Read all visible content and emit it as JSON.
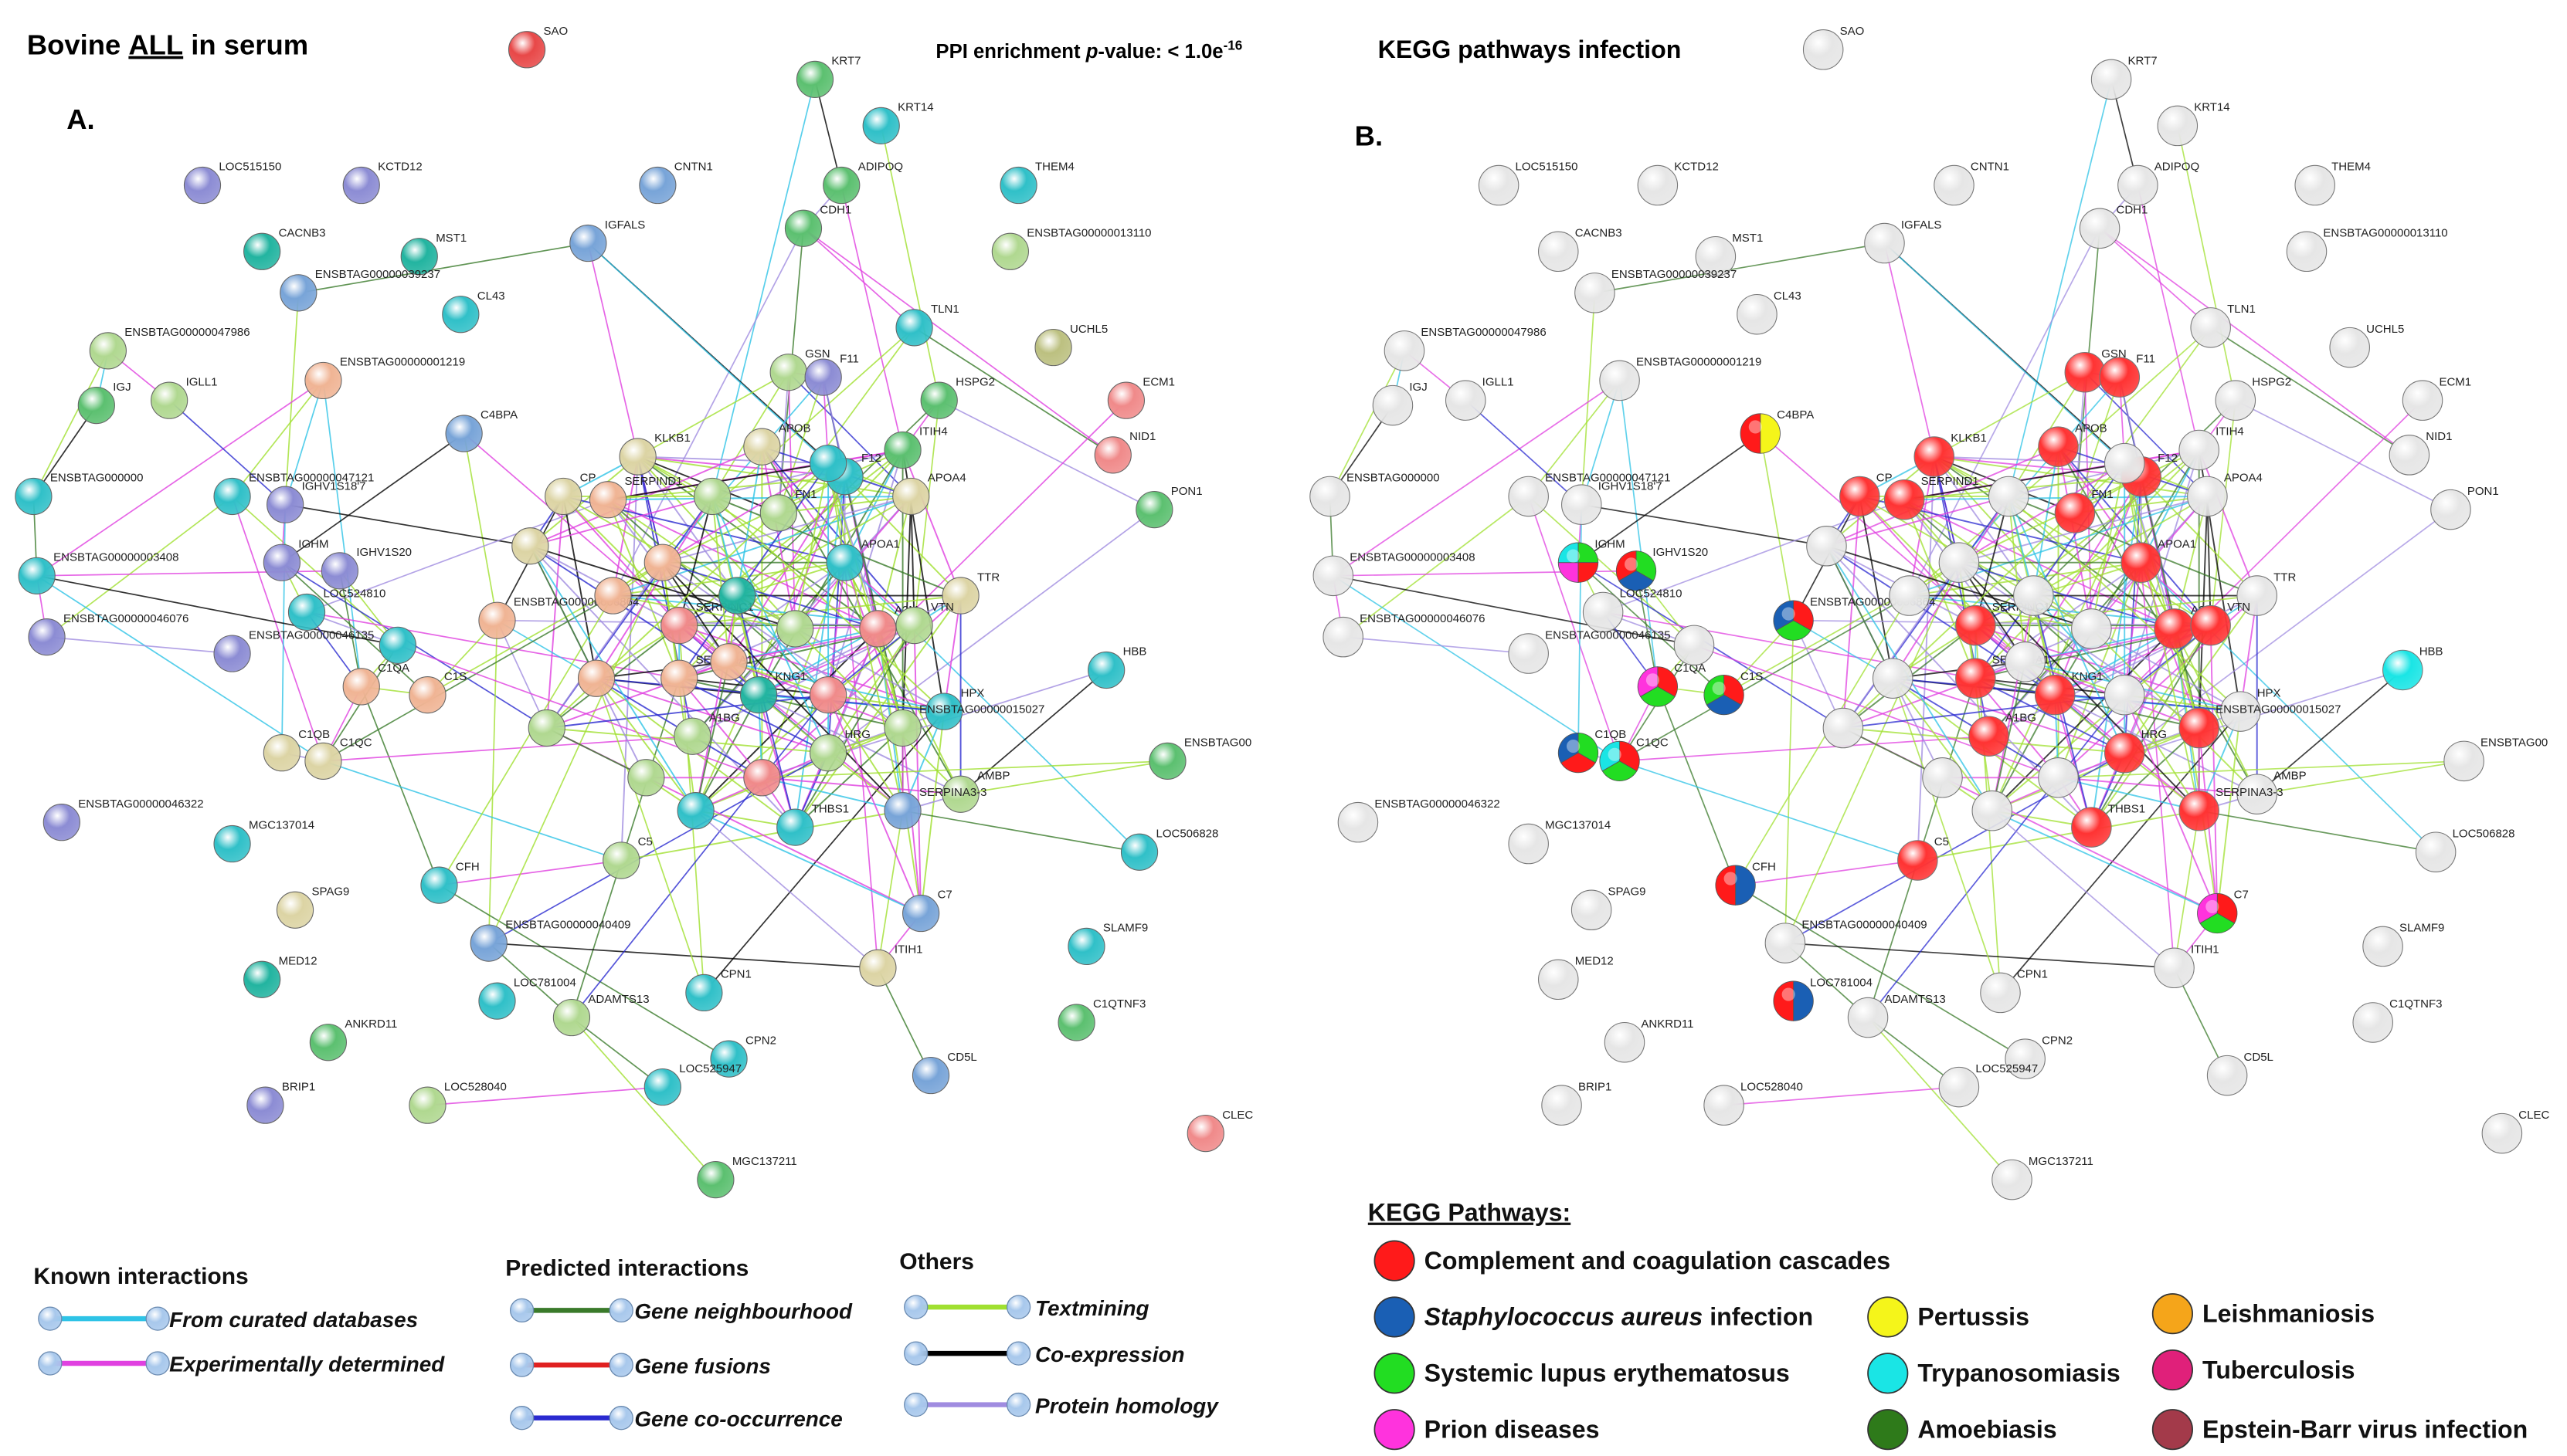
{
  "header": {
    "title_pre": "Bovine ",
    "title_underlined": "ALL",
    "title_post": " in serum",
    "ppi_pre": "PPI enrichment ",
    "ppi_italic": "p",
    "ppi_mid": "-value:  < 1.0e",
    "ppi_sup": "-16",
    "panel_b_title": "KEGG pathways infection"
  },
  "panel_a": {
    "label": "A."
  },
  "panel_b": {
    "label": "B."
  },
  "nodes": [
    "SAO",
    "KRT7",
    "KRT14",
    "ADIPOQ",
    "CDH1",
    "LOC515150",
    "KCTD12",
    "CNTN1",
    "THEM4",
    "IGFALS",
    "CACNB3",
    "MST1",
    "ENSBTAG00000013110",
    "ENSBTAG00000039237",
    "CL43",
    "TLN1",
    "UCHL5",
    "ENSBTAG00000047986",
    "ENSBTAG00000001219",
    "GSN",
    "F11",
    "HSPG2",
    "ECM1",
    "IGJ",
    "IGLL1",
    "C4BPA",
    "KLKB1",
    "NID1",
    "ITIH4",
    "APOB",
    "ENSBTAG00000047121",
    "ENSBTAG000000",
    "IGHV1S18'7",
    "SERPIND1",
    "CP",
    "F12",
    "PON1",
    "APOA4",
    "FN1",
    "IGHM",
    "IGHV1S20",
    "ENSBTAG00000003408",
    "APOA1",
    "TTR",
    "LOC524810",
    "SERPINC1",
    "A2M",
    "VTN",
    "ENSBTAG00000046076",
    "ENSBTAG00000046135",
    "ENSBTAG00000006864",
    "HBB",
    "C1QA",
    "C1S",
    "KNG1",
    "SERPINA1",
    "HPX",
    "ENSBTAG00000015027",
    "C1QB",
    "C1QC",
    "A1BG",
    "HRG",
    "ENSBTAG00",
    "AMBP",
    "SERPINA3-3",
    "THBS1",
    "ENSBTAG00000046322",
    "MGC137014",
    "LOC506828",
    "SPAG9",
    "CFH",
    "C5",
    "C7",
    "SLAMF9",
    "MED12",
    "ENSBTAG00000040409",
    "LOC781004",
    "ADAMTS13",
    "CPN1",
    "ITIH1",
    "C1QTNF3",
    "ANKRD11",
    "CPN2",
    "CD5L",
    "LOC528040",
    "LOC525947",
    "BRIP1",
    "CLEC",
    "MGC137211"
  ],
  "legend": {
    "known": {
      "title": "Known interactions",
      "items": [
        {
          "name": "From curated databases",
          "color": "#2ec3e6"
        },
        {
          "name": "Experimentally  determined",
          "color": "#e040e0"
        }
      ]
    },
    "predicted": {
      "title": "Predicted interactions",
      "items": [
        {
          "name": "Gene neighbourhood",
          "color": "#3a7a2a"
        },
        {
          "name": "Gene fusions",
          "color": "#e02020"
        },
        {
          "name": "Gene co-occurrence",
          "color": "#2a2ad0"
        }
      ]
    },
    "others": {
      "title": "Others",
      "items": [
        {
          "name": "Textmining",
          "color": "#a0e030"
        },
        {
          "name": "Co-expression",
          "color": "#000000"
        },
        {
          "name": "Protein homology",
          "color": "#a08ce0"
        }
      ]
    }
  },
  "kegg": {
    "title": "KEGG Pathways:",
    "items": [
      {
        "name": "Complement and coagulation cascades",
        "color": "#ff1a1a"
      },
      {
        "name_italic": "Staphylococcus aureus",
        "name": " infection",
        "color": "#1a5fb4"
      },
      {
        "name": "Systemic lupus erythematosus",
        "color": "#22dd22"
      },
      {
        "name": "Prion diseases",
        "color": "#ff33dd"
      },
      {
        "name": "Pertussis",
        "color": "#f5f51a"
      },
      {
        "name": "Trypanosomiasis",
        "color": "#1ae5e5"
      },
      {
        "name": "Amoebiasis",
        "color": "#2e7a1a"
      },
      {
        "name": "Leishmaniosis",
        "color": "#f5a51a"
      },
      {
        "name": "Tuberculosis",
        "color": "#e0207a"
      },
      {
        "name": "Epstein-Barr virus infection",
        "color": "#a33a4a"
      }
    ]
  }
}
